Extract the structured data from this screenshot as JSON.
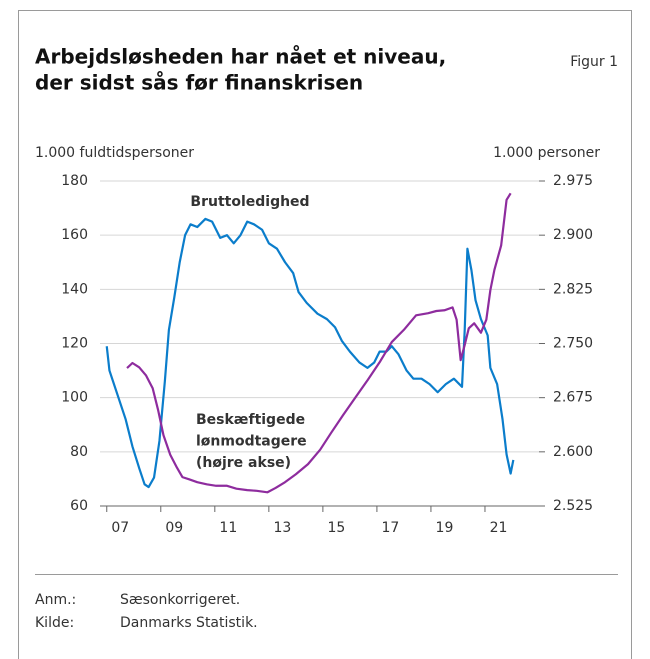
{
  "figure_label": "Figur 1",
  "chart_data": {
    "type": "line",
    "title": [
      "Arbejdsløsheden har nået et niveau,",
      "der sidst sås før finanskrisen"
    ],
    "ylabel": "1.000 fuldtidspersoner",
    "y2label": "1.000 personer",
    "xlim": [
      2006.75,
      2023
    ],
    "xticks": [
      {
        "value": 2007,
        "label": "07"
      },
      {
        "value": 2009,
        "label": "09"
      },
      {
        "value": 2011,
        "label": "11"
      },
      {
        "value": 2013,
        "label": "13"
      },
      {
        "value": 2015,
        "label": "15"
      },
      {
        "value": 2017,
        "label": "17"
      },
      {
        "value": 2019,
        "label": "19"
      },
      {
        "value": 2021,
        "label": "21"
      }
    ],
    "ylim": [
      60,
      180
    ],
    "yticks": [
      60,
      80,
      100,
      120,
      140,
      160,
      180
    ],
    "y2lim": [
      2525,
      2975
    ],
    "y2ticks": [
      {
        "value": 2525,
        "label": "2.525"
      },
      {
        "value": 2600,
        "label": "2.600"
      },
      {
        "value": 2675,
        "label": "2.675"
      },
      {
        "value": 2750,
        "label": "2.750"
      },
      {
        "value": 2825,
        "label": "2.825"
      },
      {
        "value": 2900,
        "label": "2.900"
      },
      {
        "value": 2975,
        "label": "2.975"
      }
    ],
    "grid": true,
    "series": [
      {
        "name": "Bruttoledighed",
        "color": "#0b7dcb",
        "x": [
          2007.0,
          2007.1,
          2007.4,
          2007.7,
          2007.95,
          2008.2,
          2008.4,
          2008.55,
          2008.75,
          2008.95,
          2009.15,
          2009.3,
          2009.5,
          2009.7,
          2009.9,
          2010.1,
          2010.35,
          2010.65,
          2010.9,
          2011.2,
          2011.45,
          2011.7,
          2011.95,
          2012.2,
          2012.45,
          2012.75,
          2013.0,
          2013.3,
          2013.6,
          2013.9,
          2014.1,
          2014.4,
          2014.8,
          2015.15,
          2015.45,
          2015.7,
          2016.0,
          2016.35,
          2016.65,
          2016.9,
          2017.1,
          2017.35,
          2017.55,
          2017.8,
          2018.1,
          2018.35,
          2018.65,
          2018.95,
          2019.25,
          2019.55,
          2019.85,
          2020.15,
          2020.25,
          2020.35,
          2020.5,
          2020.65,
          2020.85,
          2021.1,
          2021.2,
          2021.45,
          2021.65,
          2021.8,
          2021.95,
          2022.05
        ],
        "values": [
          119,
          110,
          101,
          92,
          82,
          74,
          68,
          67,
          70.5,
          84,
          106,
          125,
          137,
          150,
          160,
          164,
          163,
          166,
          165,
          159,
          160,
          157,
          160,
          165,
          164,
          162,
          157,
          155,
          150,
          146,
          139,
          135,
          131,
          129,
          126,
          121,
          117,
          113,
          111,
          113,
          117,
          117,
          119,
          116,
          110,
          107,
          107,
          105,
          102,
          105,
          107,
          104,
          125,
          155,
          147,
          136,
          129,
          123,
          111,
          105,
          92,
          79,
          72,
          77
        ]
      },
      {
        "name": "Beskæftigede lønmodtagere (højre akse)",
        "color": "#8e2c9e",
        "axis": "y2",
        "x": [
          2007.75,
          2007.95,
          2008.2,
          2008.45,
          2008.7,
          2008.9,
          2009.1,
          2009.35,
          2009.6,
          2009.8,
          2010.05,
          2010.35,
          2010.7,
          2011.05,
          2011.45,
          2011.8,
          2012.2,
          2012.55,
          2012.95,
          2013.25,
          2013.6,
          2014.0,
          2014.45,
          2014.9,
          2015.3,
          2015.75,
          2016.2,
          2016.65,
          2017.1,
          2017.55,
          2018.0,
          2018.45,
          2018.9,
          2019.2,
          2019.5,
          2019.8,
          2019.95,
          2020.1,
          2020.25,
          2020.4,
          2020.6,
          2020.85,
          2021.05,
          2021.2,
          2021.35,
          2021.6,
          2021.8,
          2021.95
        ],
        "values": [
          2716,
          2723,
          2717,
          2706,
          2688,
          2658,
          2623,
          2596,
          2578,
          2565,
          2562,
          2558,
          2555,
          2553,
          2553,
          2549,
          2547,
          2546,
          2544,
          2550,
          2558,
          2569,
          2583,
          2603,
          2626,
          2651,
          2675,
          2699,
          2724,
          2752,
          2769,
          2789,
          2792,
          2795,
          2796,
          2800,
          2783,
          2727,
          2748,
          2771,
          2778,
          2765,
          2783,
          2824,
          2852,
          2886,
          2949,
          2958
        ]
      }
    ],
    "annotations": [
      {
        "text": [
          "Bruttoledighed"
        ],
        "series": 0
      },
      {
        "text": [
          "Beskæftigede",
          "lønmodtagere",
          "(højre akse)"
        ],
        "series": 1
      }
    ]
  },
  "notes": [
    {
      "label": "Anm.:",
      "text": "Sæsonkorrigeret."
    },
    {
      "label": "Kilde:",
      "text": "Danmarks Statistik."
    }
  ]
}
